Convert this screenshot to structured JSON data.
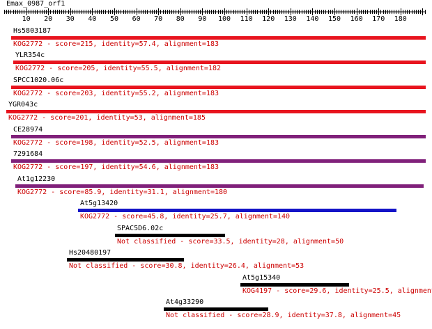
{
  "query": {
    "title": "Emax_0987_orf1"
  },
  "ruler": {
    "ticks": [
      "10",
      "20",
      "30",
      "40",
      "50",
      "60",
      "70",
      "80",
      "90",
      "100",
      "110",
      "120",
      "130",
      "140",
      "150",
      "160",
      "170",
      "180"
    ]
  },
  "hits": [
    {
      "name": "Hs5803187",
      "info": "KOG2772 - score=215, identity=57.4, alignment=183",
      "bar_color": "#e8141e",
      "info_color": "#cc0000"
    },
    {
      "name": "YLR354c",
      "info": "KOG2772 - score=205, identity=55.5, alignment=182",
      "bar_color": "#e8141e",
      "info_color": "#cc0000"
    },
    {
      "name": "SPCC1020.06c",
      "info": "KOG2772 - score=203, identity=55.2, alignment=183",
      "bar_color": "#e8141e",
      "info_color": "#cc0000"
    },
    {
      "name": "YGR043c",
      "info": "KOG2772 - score=201, identity=53, alignment=185",
      "bar_color": "#e8141e",
      "info_color": "#cc0000"
    },
    {
      "name": "CE28974",
      "info": "KOG2772 - score=198, identity=52.5, alignment=183",
      "bar_color": "#80207a",
      "info_color": "#cc0000"
    },
    {
      "name": "7291684",
      "info": "KOG2772 - score=197, identity=54.6, alignment=183",
      "bar_color": "#80207a",
      "info_color": "#cc0000"
    },
    {
      "name": "At1g12230",
      "info": "KOG2772 - score=85.9, identity=31.1, alignment=180",
      "bar_color": "#80207a",
      "info_color": "#cc0000"
    },
    {
      "name": "At5g13420",
      "info": "KOG2772 - score=45.8, identity=25.7, alignment=140",
      "bar_color": "#1414c8",
      "info_color": "#cc0000"
    },
    {
      "name": "SPAC5D6.02c",
      "info": "Not classified - score=33.5, identity=28, alignment=50",
      "bar_color": "#000000",
      "info_color": "#cc0000"
    },
    {
      "name": "Hs20480197",
      "info": "Not classified - score=30.8, identity=26.4, alignment=53",
      "bar_color": "#000000",
      "info_color": "#cc0000"
    },
    {
      "name": "At5g15340",
      "info": "KOG4197 - score=29.6, identity=25.5, alignment",
      "bar_color": "#000000",
      "info_color": "#cc0000"
    },
    {
      "name": "At4g33290",
      "info": "Not classified - score=28.9, identity=37.8, alignment=45",
      "bar_color": "#000000",
      "info_color": "#cc0000"
    }
  ]
}
